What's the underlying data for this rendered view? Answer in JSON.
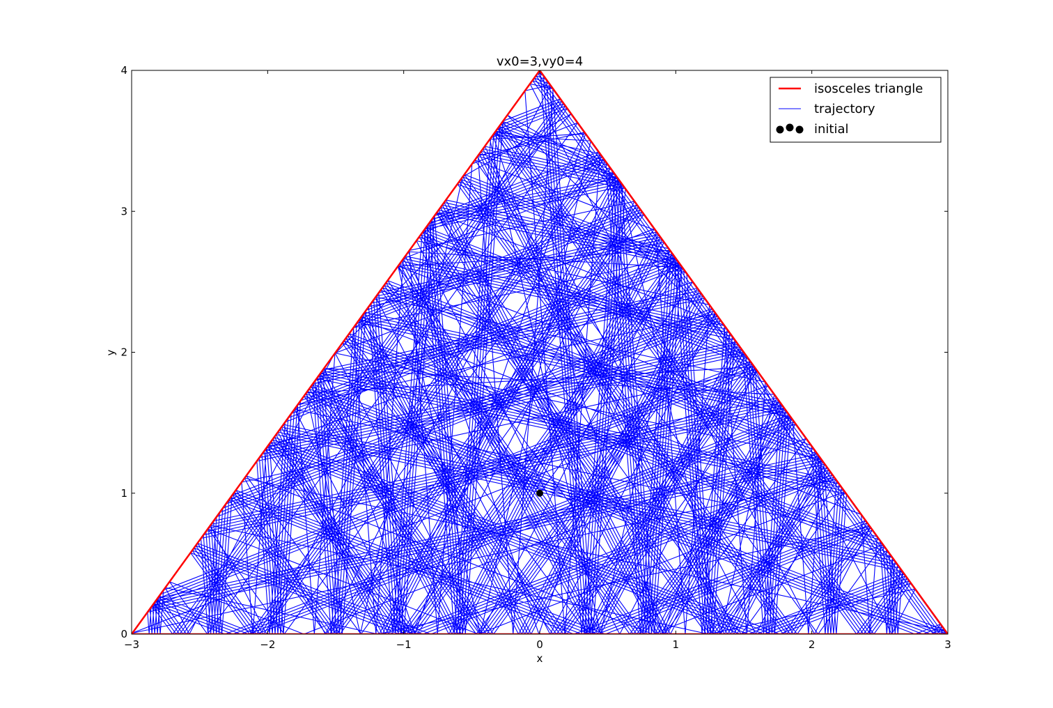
{
  "chart_data": {
    "type": "line",
    "title": "vx0=3,vy0=4",
    "xlabel": "x",
    "ylabel": "y",
    "xlim": [
      -3,
      3
    ],
    "ylim": [
      0,
      4
    ],
    "xticks": [
      -3,
      -2,
      -1,
      0,
      1,
      2,
      3
    ],
    "xtick_labels": [
      "−3",
      "−2",
      "−1",
      "0",
      "1",
      "2",
      "3"
    ],
    "yticks": [
      0,
      1,
      2,
      3,
      4
    ],
    "ytick_labels": [
      "0",
      "1",
      "2",
      "3",
      "4"
    ],
    "grid": false,
    "legend_position": "top-right",
    "series": [
      {
        "name": "isosceles triangle",
        "kind": "line",
        "color": "#ff0000",
        "x": [
          -3,
          0,
          3,
          -3
        ],
        "y": [
          0,
          4,
          0,
          0
        ]
      },
      {
        "name": "trajectory",
        "kind": "billiard-trajectory",
        "color": "#0000ff",
        "start": [
          0,
          1
        ],
        "initial_velocity": [
          3,
          4
        ],
        "reflections": 600
      },
      {
        "name": "initial",
        "kind": "scatter",
        "color": "#000000",
        "x": [
          0
        ],
        "y": [
          1
        ]
      }
    ],
    "legend": [
      {
        "label": "isosceles triangle",
        "marker": "line",
        "color": "#ff0000"
      },
      {
        "label": "trajectory",
        "marker": "line",
        "color": "#0000ff"
      },
      {
        "label": "initial",
        "marker": "dots",
        "color": "#000000"
      }
    ]
  }
}
